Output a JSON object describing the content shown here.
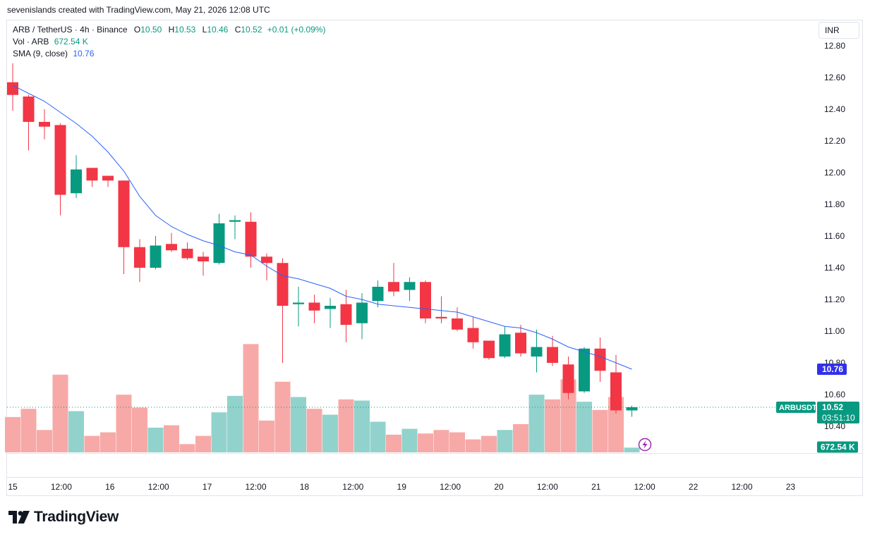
{
  "header": {
    "credit": "sevenislands created with TradingView.com, May 21, 2026 12:08 UTC"
  },
  "currency_button": {
    "label": "INR"
  },
  "legend": {
    "symbol": "ARB / TetherUS · 4h · Binance",
    "o_label": "O",
    "o_value": "10.50",
    "h_label": "H",
    "h_value": "10.53",
    "l_label": "L",
    "l_value": "10.46",
    "c_label": "C",
    "c_value": "10.52",
    "change": "+0.01 (+0.09%)",
    "vol_label": "Vol · ARB",
    "vol_value": "672.54 K",
    "sma_label": "SMA (9, close)",
    "sma_value": "10.76"
  },
  "tags": {
    "sma": "10.76",
    "symbol": "ARBUSDT",
    "last_price": "10.52",
    "countdown": "03:51:10",
    "volume": "672.54 K"
  },
  "colors": {
    "up": "#089981",
    "down": "#f23645",
    "up_vol": "#92d2cc",
    "down_vol": "#f7a9a7",
    "sma": "#2962ff",
    "sma_tag": "#3030ea"
  },
  "brand": {
    "name": "TradingView"
  },
  "chart_data": {
    "type": "candlestick",
    "price_axis": {
      "ticks": [
        "12.80",
        "12.60",
        "12.40",
        "12.20",
        "12.00",
        "11.80",
        "11.60",
        "11.40",
        "11.20",
        "11.00",
        "10.80",
        "10.60",
        "10.40"
      ],
      "range": [
        10.37,
        12.82
      ]
    },
    "time_axis": {
      "ticks": [
        "15",
        "12:00",
        "16",
        "12:00",
        "17",
        "12:00",
        "18",
        "12:00",
        "19",
        "12:00",
        "20",
        "12:00",
        "21",
        "12:00",
        "22",
        "12:00",
        "23"
      ]
    },
    "candles": [
      {
        "o": 12.57,
        "h": 12.69,
        "l": 12.39,
        "c": 12.49
      },
      {
        "o": 12.48,
        "h": 12.49,
        "l": 12.14,
        "c": 12.32
      },
      {
        "o": 12.32,
        "h": 12.4,
        "l": 12.21,
        "c": 12.29
      },
      {
        "o": 12.3,
        "h": 12.31,
        "l": 11.73,
        "c": 11.86
      },
      {
        "o": 11.87,
        "h": 12.11,
        "l": 11.84,
        "c": 12.02
      },
      {
        "o": 12.03,
        "h": 12.03,
        "l": 11.91,
        "c": 11.95
      },
      {
        "o": 11.98,
        "h": 11.98,
        "l": 11.91,
        "c": 11.95
      },
      {
        "o": 11.95,
        "h": 11.95,
        "l": 11.36,
        "c": 11.53
      },
      {
        "o": 11.53,
        "h": 11.58,
        "l": 11.31,
        "c": 11.4
      },
      {
        "o": 11.4,
        "h": 11.6,
        "l": 11.39,
        "c": 11.54
      },
      {
        "o": 11.55,
        "h": 11.62,
        "l": 11.5,
        "c": 11.51
      },
      {
        "o": 11.52,
        "h": 11.56,
        "l": 11.45,
        "c": 11.46
      },
      {
        "o": 11.47,
        "h": 11.5,
        "l": 11.35,
        "c": 11.44
      },
      {
        "o": 11.43,
        "h": 11.74,
        "l": 11.42,
        "c": 11.68
      },
      {
        "o": 11.69,
        "h": 11.73,
        "l": 11.58,
        "c": 11.7
      },
      {
        "o": 11.69,
        "h": 11.75,
        "l": 11.4,
        "c": 11.47
      },
      {
        "o": 11.47,
        "h": 11.49,
        "l": 11.32,
        "c": 11.43
      },
      {
        "o": 11.43,
        "h": 11.46,
        "l": 10.8,
        "c": 11.16
      },
      {
        "o": 11.17,
        "h": 11.28,
        "l": 11.03,
        "c": 11.18
      },
      {
        "o": 11.18,
        "h": 11.23,
        "l": 11.05,
        "c": 11.13
      },
      {
        "o": 11.14,
        "h": 11.21,
        "l": 11.02,
        "c": 11.16
      },
      {
        "o": 11.17,
        "h": 11.26,
        "l": 10.93,
        "c": 11.04
      },
      {
        "o": 11.05,
        "h": 11.24,
        "l": 10.95,
        "c": 11.18
      },
      {
        "o": 11.19,
        "h": 11.32,
        "l": 11.15,
        "c": 11.28
      },
      {
        "o": 11.31,
        "h": 11.43,
        "l": 11.22,
        "c": 11.25
      },
      {
        "o": 11.26,
        "h": 11.34,
        "l": 11.19,
        "c": 11.31
      },
      {
        "o": 11.31,
        "h": 11.32,
        "l": 11.05,
        "c": 11.08
      },
      {
        "o": 11.09,
        "h": 11.22,
        "l": 11.05,
        "c": 11.08
      },
      {
        "o": 11.08,
        "h": 11.15,
        "l": 11.0,
        "c": 11.01
      },
      {
        "o": 11.02,
        "h": 11.09,
        "l": 10.89,
        "c": 10.93
      },
      {
        "o": 10.94,
        "h": 10.94,
        "l": 10.82,
        "c": 10.83
      },
      {
        "o": 10.84,
        "h": 11.03,
        "l": 10.83,
        "c": 10.98
      },
      {
        "o": 10.99,
        "h": 11.04,
        "l": 10.84,
        "c": 10.86
      },
      {
        "o": 10.84,
        "h": 11.01,
        "l": 10.74,
        "c": 10.9
      },
      {
        "o": 10.9,
        "h": 10.97,
        "l": 10.78,
        "c": 10.8
      },
      {
        "o": 10.79,
        "h": 10.84,
        "l": 10.57,
        "c": 10.61
      },
      {
        "o": 10.62,
        "h": 10.9,
        "l": 10.61,
        "c": 10.89
      },
      {
        "o": 10.89,
        "h": 10.96,
        "l": 10.68,
        "c": 10.75
      },
      {
        "o": 10.74,
        "h": 10.85,
        "l": 10.48,
        "c": 10.5
      },
      {
        "o": 10.5,
        "h": 10.53,
        "l": 10.46,
        "c": 10.52
      }
    ],
    "volumes": [
      30,
      37,
      19,
      66,
      35,
      14,
      17,
      49,
      38,
      21,
      23,
      7,
      14,
      34,
      48,
      92,
      27,
      60,
      47,
      37,
      32,
      45,
      44,
      26,
      15,
      20,
      16,
      19,
      17,
      11,
      14,
      19,
      24,
      49,
      45,
      62,
      43,
      36,
      47,
      4
    ],
    "sma": [
      12.55,
      12.5,
      12.45,
      12.38,
      12.31,
      12.23,
      12.13,
      12.01,
      11.85,
      11.73,
      11.66,
      11.61,
      11.57,
      11.54,
      11.5,
      11.48,
      11.41,
      11.35,
      11.33,
      11.3,
      11.27,
      11.22,
      11.2,
      11.17,
      11.16,
      11.15,
      11.14,
      11.13,
      11.12,
      11.09,
      11.06,
      11.03,
      11.02,
      10.99,
      10.95,
      10.9,
      10.87,
      10.84,
      10.8,
      10.76
    ]
  }
}
